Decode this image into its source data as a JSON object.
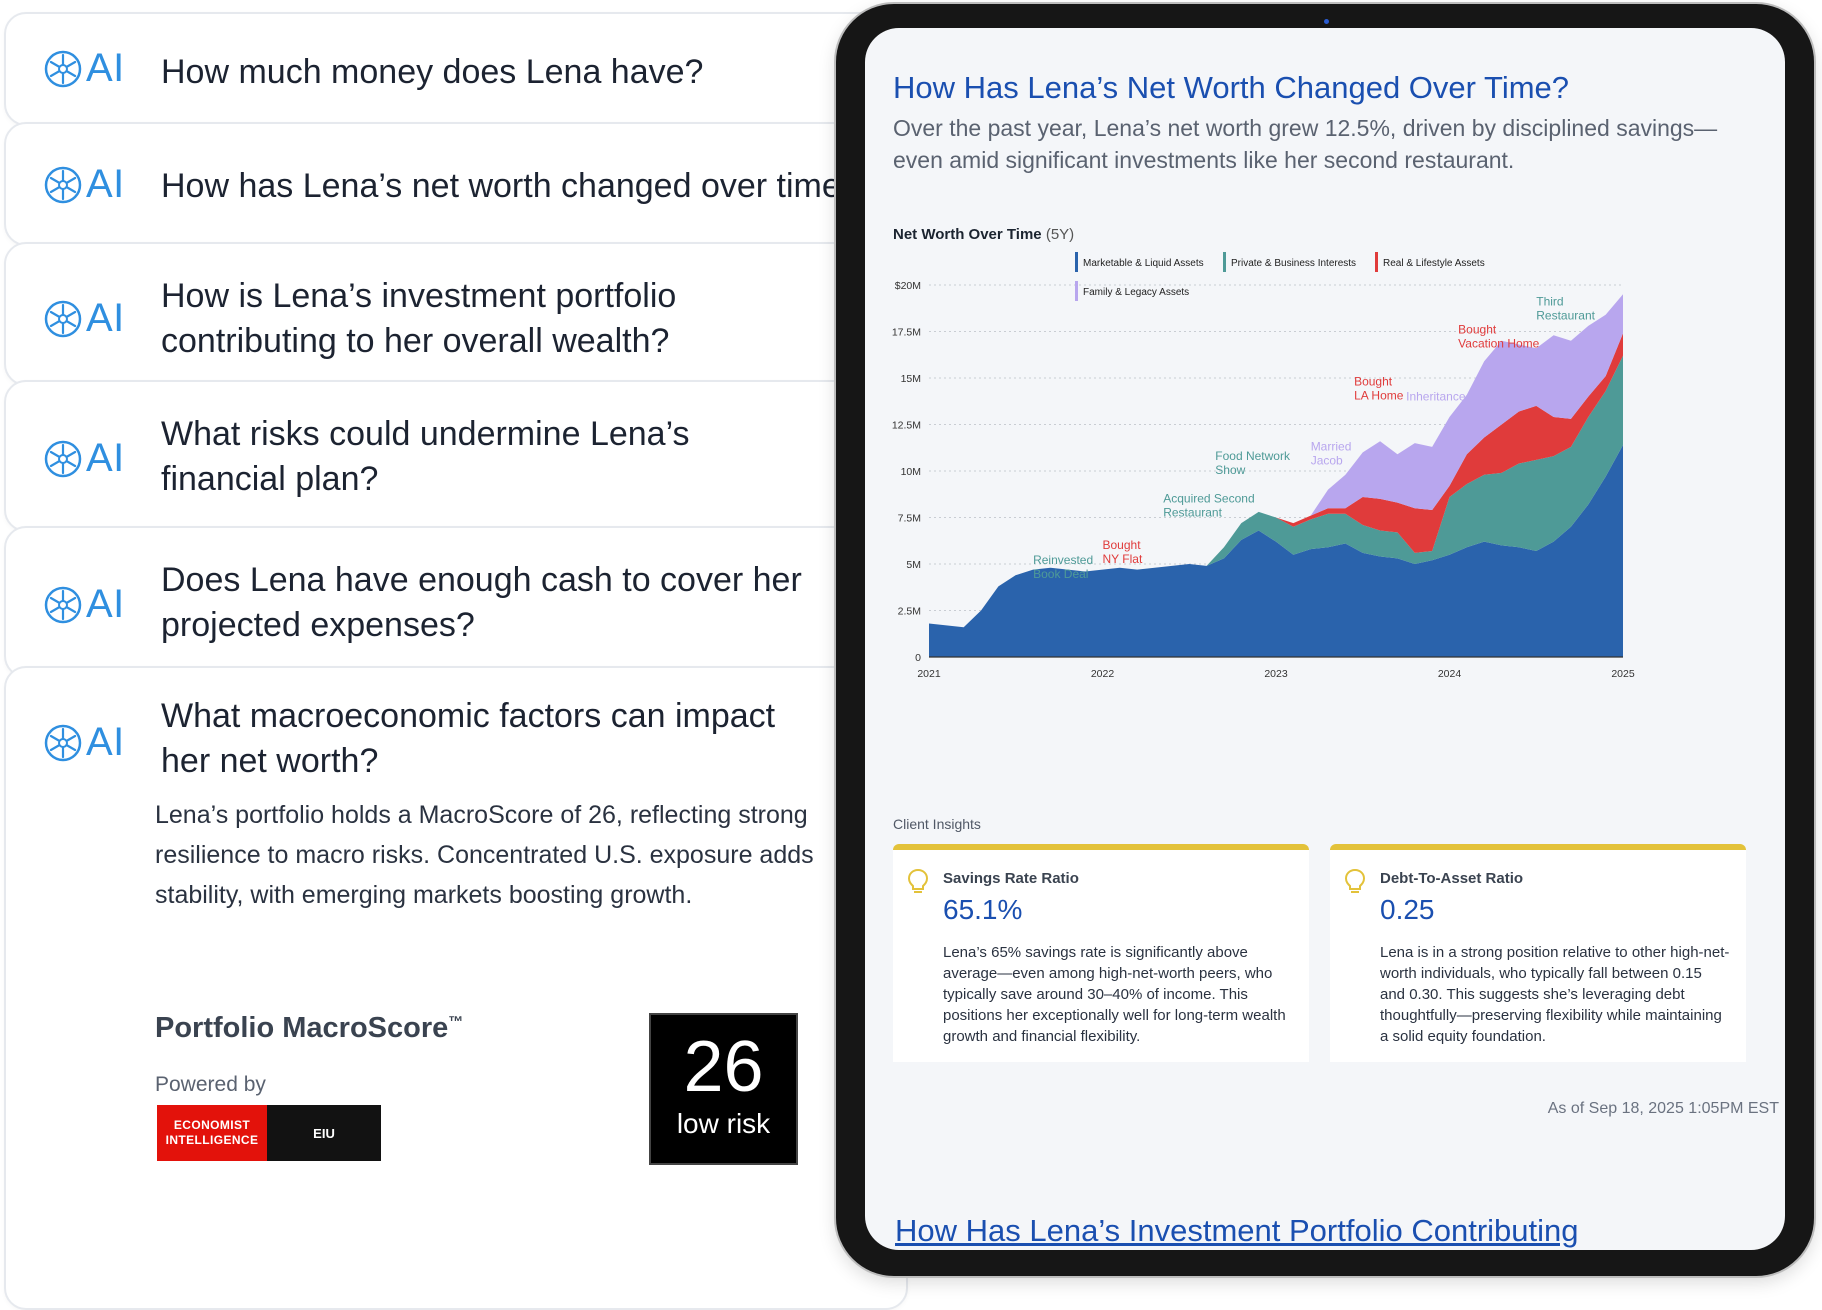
{
  "questions": [
    {
      "label": "AI",
      "text": "How much money does Lena have?"
    },
    {
      "label": "AI",
      "text": "How has Lena’s net worth changed over time"
    },
    {
      "label": "AI",
      "text": "How is Lena’s investment portfolio\ncontributing to her overall wealth?"
    },
    {
      "label": "AI",
      "text": "What risks could undermine Lena’s\nfinancial plan?"
    },
    {
      "label": "AI",
      "text": "Does Lena have enough cash to cover her\nprojected expenses?"
    },
    {
      "label": "AI",
      "text": "What macroeconomic factors can impact\nher net worth?"
    }
  ],
  "answer": "Lena’s portfolio holds a MacroScore of 26, reflecting strong resilience to macro risks. Concentrated U.S. exposure adds stability, with emerging markets boosting growth.",
  "macroscore": {
    "title": "Portfolio MacroScore",
    "trademark": "™",
    "powered_by": "Powered by",
    "logo_left": "ECONOMIST INTELLIGENCE",
    "logo_right": "EIU",
    "score": "26",
    "risk": "low risk"
  },
  "tablet": {
    "title": "How Has Lena’s Net Worth Changed Over Time?",
    "subtitle": "Over the past year, Lena’s net worth grew 12.5%, driven by disciplined savings—even amid significant investments like her second restaurant.",
    "chart_heading": "Net Worth Over Time",
    "chart_period": "(5Y)",
    "insights_label": "Client Insights",
    "insights": [
      {
        "name": "Savings Rate Ratio",
        "value": "65.1%",
        "text": "Lena’s 65% savings rate is significantly above average—even among high-net-worth peers, who typically save around 30–40% of income. This positions her exceptionally well for long-term wealth growth and financial flexibility."
      },
      {
        "name": "Debt-To-Asset Ratio",
        "value": "0.25",
        "text": "Lena is in a strong position relative to other high-net-worth individuals, who typically fall between 0.15 and 0.30. This suggests she’s leveraging debt thoughtfully—preserving flexibility while maintaining a solid equity foundation."
      }
    ],
    "as_of": "As of Sep 18, 2025 1:05PM EST",
    "next_title": "How Has Lena’s Investment Portfolio Contributing"
  },
  "colors": {
    "marketable": "#2a63ac",
    "private": "#4e9a97",
    "real": "#e03b3b",
    "family": "#b8a6ee",
    "accent_blue": "#1a4fb0",
    "insight_bar": "#e3c23a"
  },
  "chart_data": {
    "type": "area",
    "stacked": true,
    "x": [
      2021.0,
      2021.1,
      2021.2,
      2021.3,
      2021.4,
      2021.5,
      2021.6,
      2021.7,
      2021.8,
      2021.9,
      2022.0,
      2022.1,
      2022.2,
      2022.3,
      2022.4,
      2022.5,
      2022.6,
      2022.7,
      2022.8,
      2022.9,
      2023.0,
      2023.1,
      2023.2,
      2023.3,
      2023.4,
      2023.5,
      2023.6,
      2023.7,
      2023.8,
      2023.9,
      2024.0,
      2024.1,
      2024.2,
      2024.3,
      2024.4,
      2024.5,
      2024.6,
      2024.7,
      2024.8,
      2024.9,
      2025.0
    ],
    "series": [
      {
        "name": "Marketable & Liquid Assets",
        "values": [
          1.8,
          1.7,
          1.6,
          2.5,
          3.8,
          4.4,
          4.7,
          4.8,
          4.7,
          4.6,
          4.7,
          4.8,
          4.7,
          4.8,
          4.9,
          5.0,
          4.9,
          5.3,
          6.3,
          6.8,
          6.2,
          5.5,
          5.8,
          5.9,
          6.1,
          5.6,
          5.4,
          5.3,
          5.0,
          5.2,
          5.5,
          5.9,
          6.2,
          6.0,
          5.9,
          5.7,
          6.2,
          7.0,
          8.2,
          9.7,
          11.4
        ]
      },
      {
        "name": "Private & Business Interests",
        "values": [
          0,
          0,
          0,
          0,
          0,
          0,
          0,
          0,
          0,
          0,
          0,
          0,
          0,
          0,
          0,
          0,
          0,
          0.6,
          0.9,
          1.0,
          1.3,
          1.5,
          1.6,
          1.8,
          1.6,
          1.5,
          1.4,
          1.4,
          0.6,
          0.5,
          3.1,
          3.4,
          3.6,
          3.9,
          4.5,
          4.9,
          4.6,
          4.3,
          4.7,
          4.6,
          4.8
        ]
      },
      {
        "name": "Real & Lifestyle Assets",
        "values": [
          0,
          0,
          0,
          0,
          0,
          0,
          0,
          0,
          0,
          0,
          0,
          0,
          0,
          0,
          0,
          0,
          0,
          0,
          0,
          0,
          0,
          0.2,
          0.2,
          0.3,
          0.3,
          1.5,
          1.7,
          1.6,
          2.4,
          2.2,
          0.6,
          1.6,
          2.0,
          2.6,
          2.8,
          2.9,
          2.1,
          1.5,
          1.1,
          0.8,
          1.2
        ]
      },
      {
        "name": "Family & Legacy Assets",
        "values": [
          0,
          0,
          0,
          0,
          0,
          0,
          0,
          0,
          0,
          0,
          0,
          0,
          0,
          0,
          0,
          0,
          0,
          0,
          0,
          0,
          0,
          0,
          0,
          1.0,
          1.8,
          2.4,
          3.1,
          2.6,
          3.5,
          3.4,
          3.7,
          3.2,
          4.1,
          4.5,
          3.6,
          3.1,
          4.4,
          4.2,
          3.8,
          3.3,
          2.1
        ]
      }
    ],
    "ylim": [
      0,
      20
    ],
    "y_ticks": [
      {
        "v": 0,
        "label": "0"
      },
      {
        "v": 2.5,
        "label": "2.5M"
      },
      {
        "v": 5,
        "label": "5M"
      },
      {
        "v": 7.5,
        "label": "7.5M"
      },
      {
        "v": 10,
        "label": "10M"
      },
      {
        "v": 12.5,
        "label": "12.5M"
      },
      {
        "v": 15,
        "label": "15M"
      },
      {
        "v": 17.5,
        "label": "17.5M"
      },
      {
        "v": 20,
        "label": "$20M"
      }
    ],
    "x_ticks": [
      "2021",
      "2022",
      "2023",
      "2024",
      "2025"
    ],
    "grid": true,
    "legend": "top",
    "annotations": [
      {
        "x": 2021.6,
        "y": 5.0,
        "text": "Reinvested\nBook Deal",
        "color": "private"
      },
      {
        "x": 2022.0,
        "y": 5.8,
        "text": "Bought\nNY Flat",
        "color": "real"
      },
      {
        "x": 2022.35,
        "y": 8.3,
        "text": "Acquired Second\nRestaurant",
        "color": "private"
      },
      {
        "x": 2022.65,
        "y": 10.6,
        "text": "Food Network\nShow",
        "color": "private"
      },
      {
        "x": 2023.2,
        "y": 11.1,
        "text": "Married\nJacob",
        "color": "family"
      },
      {
        "x": 2023.75,
        "y": 13.8,
        "text": "Inheritance",
        "color": "family"
      },
      {
        "x": 2023.45,
        "y": 14.6,
        "text": "Bought\nLA Home",
        "color": "real"
      },
      {
        "x": 2024.05,
        "y": 17.4,
        "text": "Bought\nVacation Home",
        "color": "real"
      },
      {
        "x": 2024.5,
        "y": 18.9,
        "text": "Third\nRestaurant",
        "color": "private"
      }
    ]
  }
}
